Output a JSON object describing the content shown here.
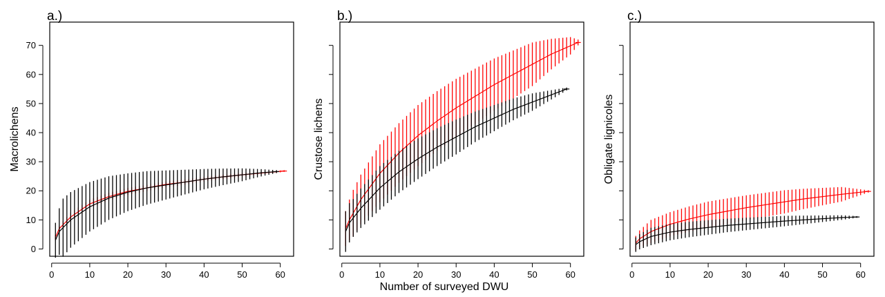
{
  "figure": {
    "xlabel": "Number of surveyed DWU"
  },
  "chart_data": [
    {
      "type": "line",
      "panel_label": "a.)",
      "ylabel": "Macrolichens",
      "xlim": [
        -0.5,
        63.5
      ],
      "ylim": [
        -2.5,
        78
      ],
      "xticks": [
        0,
        10,
        20,
        30,
        40,
        50,
        60
      ],
      "yticks": [
        0,
        10,
        20,
        30,
        40,
        50,
        60,
        70
      ],
      "y_tick_labels_shown": true,
      "series": [
        {
          "color": "#ff0000",
          "x_max": 61,
          "values": [
            [
              1,
              4
            ],
            [
              2,
              7
            ],
            [
              5,
              11
            ],
            [
              10,
              15.5
            ],
            [
              15,
              18
            ],
            [
              20,
              19.8
            ],
            [
              25,
              21
            ],
            [
              30,
              22.2
            ],
            [
              35,
              23
            ],
            [
              40,
              24
            ],
            [
              45,
              24.8
            ],
            [
              50,
              25.5
            ],
            [
              55,
              26.1
            ],
            [
              61,
              26.8
            ]
          ],
          "error_halfwidth": [
            [
              1,
              0.8
            ],
            [
              5,
              1.5
            ],
            [
              20,
              1.2
            ],
            [
              40,
              0.8
            ],
            [
              61,
              0.3
            ]
          ]
        },
        {
          "color": "#000000",
          "x_max": 59,
          "values": [
            [
              1,
              3
            ],
            [
              2,
              6
            ],
            [
              5,
              10
            ],
            [
              10,
              14.5
            ],
            [
              15,
              17.5
            ],
            [
              20,
              19.5
            ],
            [
              25,
              21
            ],
            [
              30,
              22
            ],
            [
              35,
              23
            ],
            [
              40,
              24
            ],
            [
              45,
              24.8
            ],
            [
              50,
              25.5
            ],
            [
              55,
              26.2
            ],
            [
              59,
              26.6
            ]
          ],
          "error_halfwidth": [
            [
              1,
              6
            ],
            [
              3,
              10
            ],
            [
              10,
              8.5
            ],
            [
              20,
              6.5
            ],
            [
              30,
              5
            ],
            [
              40,
              3.5
            ],
            [
              50,
              2.2
            ],
            [
              59,
              0.5
            ]
          ]
        }
      ]
    },
    {
      "type": "line",
      "panel_label": "b.)",
      "ylabel": "Crustose lichens",
      "xlim": [
        -0.5,
        63.5
      ],
      "ylim": [
        -2.5,
        78
      ],
      "xticks": [
        0,
        10,
        20,
        30,
        40,
        50,
        60
      ],
      "yticks": [
        0,
        10,
        20,
        30,
        40,
        50,
        60,
        70
      ],
      "y_tick_labels_shown": false,
      "series": [
        {
          "color": "#ff0000",
          "x_max": 62,
          "values": [
            [
              1,
              7
            ],
            [
              2,
              10
            ],
            [
              5,
              17
            ],
            [
              10,
              26
            ],
            [
              15,
              33
            ],
            [
              20,
              39
            ],
            [
              25,
              44
            ],
            [
              30,
              48.5
            ],
            [
              35,
              52.5
            ],
            [
              40,
              56.5
            ],
            [
              45,
              60
            ],
            [
              50,
              63.5
            ],
            [
              55,
              67
            ],
            [
              62,
              71
            ]
          ],
          "error_halfwidth": [
            [
              1,
              6
            ],
            [
              3,
              8
            ],
            [
              10,
              10
            ],
            [
              20,
              10.5
            ],
            [
              30,
              10
            ],
            [
              40,
              9
            ],
            [
              50,
              7.5
            ],
            [
              60,
              3
            ],
            [
              62,
              1
            ]
          ]
        },
        {
          "color": "#000000",
          "x_max": 59,
          "values": [
            [
              1,
              6
            ],
            [
              2,
              9
            ],
            [
              5,
              14
            ],
            [
              10,
              21
            ],
            [
              15,
              26.5
            ],
            [
              20,
              31
            ],
            [
              25,
              35
            ],
            [
              30,
              38.5
            ],
            [
              35,
              42
            ],
            [
              40,
              45
            ],
            [
              45,
              48
            ],
            [
              50,
              50.5
            ],
            [
              55,
              53
            ],
            [
              59,
              55
            ]
          ],
          "error_halfwidth": [
            [
              1,
              7
            ],
            [
              3,
              6.5
            ],
            [
              10,
              7.5
            ],
            [
              20,
              7
            ],
            [
              30,
              6
            ],
            [
              40,
              4.5
            ],
            [
              50,
              3
            ],
            [
              59,
              0.5
            ]
          ]
        }
      ]
    },
    {
      "type": "line",
      "panel_label": "c.)",
      "ylabel": "Obligate lignicoles",
      "xlim": [
        -0.5,
        63.5
      ],
      "ylim": [
        -2.5,
        78
      ],
      "xticks": [
        0,
        10,
        20,
        30,
        40,
        50,
        60
      ],
      "yticks": [
        0,
        10,
        20,
        30,
        40,
        50,
        60,
        70
      ],
      "y_tick_labels_shown": false,
      "series": [
        {
          "color": "#ff0000",
          "x_max": 62,
          "values": [
            [
              1,
              2
            ],
            [
              2,
              3.5
            ],
            [
              5,
              6
            ],
            [
              10,
              8.5
            ],
            [
              15,
              10.3
            ],
            [
              20,
              11.8
            ],
            [
              25,
              13
            ],
            [
              30,
              14.2
            ],
            [
              35,
              15.2
            ],
            [
              40,
              16.2
            ],
            [
              45,
              17.2
            ],
            [
              50,
              18
            ],
            [
              55,
              18.8
            ],
            [
              62,
              19.8
            ]
          ],
          "error_halfwidth": [
            [
              1,
              2.5
            ],
            [
              5,
              4
            ],
            [
              20,
              4.5
            ],
            [
              40,
              4
            ],
            [
              55,
              2.5
            ],
            [
              62,
              0.4
            ]
          ]
        },
        {
          "color": "#000000",
          "x_max": 59,
          "values": [
            [
              1,
              1.5
            ],
            [
              2,
              2.5
            ],
            [
              5,
              4.3
            ],
            [
              10,
              5.8
            ],
            [
              15,
              6.7
            ],
            [
              20,
              7.4
            ],
            [
              25,
              8.1
            ],
            [
              30,
              8.6
            ],
            [
              35,
              9.1
            ],
            [
              40,
              9.6
            ],
            [
              45,
              10
            ],
            [
              50,
              10.4
            ],
            [
              55,
              10.8
            ],
            [
              59,
              11
            ]
          ],
          "error_halfwidth": [
            [
              1,
              2.5
            ],
            [
              5,
              3
            ],
            [
              20,
              2.5
            ],
            [
              40,
              1.8
            ],
            [
              55,
              0.8
            ],
            [
              59,
              0.3
            ]
          ]
        }
      ]
    }
  ]
}
